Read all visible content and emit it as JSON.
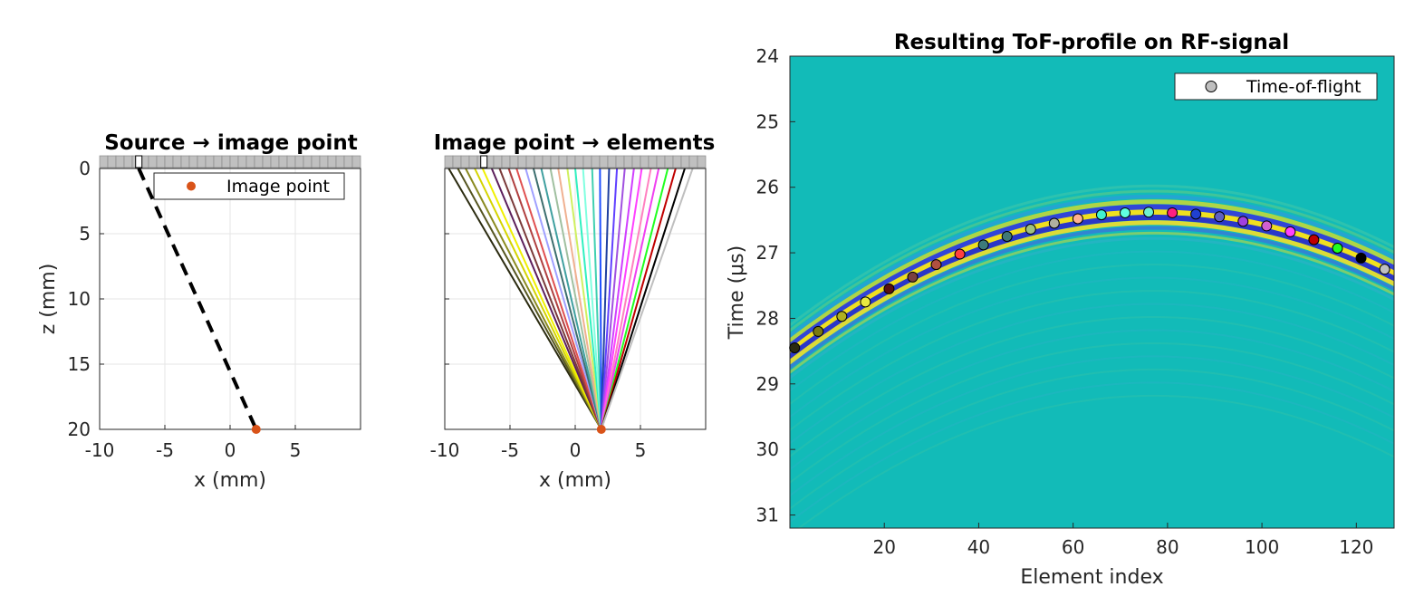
{
  "chart_data": [
    {
      "type": "line",
      "title": "Source → image point",
      "xlabel": "x (mm)",
      "ylabel": "z (mm)",
      "xlim": [
        -10,
        10
      ],
      "ylim": [
        0,
        20
      ],
      "y_reversed": true,
      "grid": true,
      "xticks": [
        -10,
        -5,
        0,
        5
      ],
      "yticks": [
        0,
        5,
        10,
        15,
        20
      ],
      "xtick_labels": [
        "-10",
        "-5",
        "0",
        "5"
      ],
      "ytick_labels": [
        "0",
        "5",
        "10",
        "15",
        "20"
      ],
      "transducer": {
        "x_start": -10,
        "x_end": 10,
        "elements": 32,
        "source_x": -7
      },
      "series": [
        {
          "style": "dashed",
          "color": "#000000",
          "x": [
            -7,
            2
          ],
          "y": [
            0,
            20
          ]
        },
        {
          "name": "Image point",
          "style": "marker",
          "color": "#D95319",
          "x": [
            2
          ],
          "y": [
            20
          ]
        }
      ],
      "legend": {
        "entries": [
          "Image point"
        ],
        "position": "top-right"
      }
    },
    {
      "type": "line",
      "title": "Image point → elements",
      "xlabel": "x (mm)",
      "xlim": [
        -10,
        10
      ],
      "ylim": [
        0,
        20
      ],
      "y_reversed": true,
      "grid": true,
      "xticks": [
        -10,
        -5,
        0,
        5
      ],
      "xtick_labels": [
        "-10",
        "-5",
        "0",
        "5"
      ],
      "yticks": [
        0,
        5,
        10,
        15,
        20
      ],
      "image_point": {
        "x": 2,
        "z": 20,
        "color": "#D95319"
      },
      "transducer": {
        "x_start": -10,
        "x_end": 10,
        "elements": 32,
        "source_x": -7
      },
      "ray_element_x": [
        -9.7,
        -9.0,
        -8.4,
        -7.7,
        -7.1,
        -6.4,
        -5.8,
        -5.1,
        -4.5,
        -3.8,
        -3.2,
        -2.6,
        -1.9,
        -1.3,
        -0.6,
        0.0,
        0.6,
        1.3,
        1.9,
        2.6,
        3.2,
        3.8,
        4.5,
        5.1,
        5.8,
        6.4,
        7.1,
        7.7,
        8.4,
        9.0
      ],
      "ray_colors": [
        "#2b2b10",
        "#555520",
        "#8a8a20",
        "#d4d400",
        "#f0f000",
        "#5c1f5c",
        "#7a3a3a",
        "#b04040",
        "#e05050",
        "#a0a0ff",
        "#3c6e6e",
        "#40a0a0",
        "#a0c0a0",
        "#f0b090",
        "#d0f060",
        "#30f0c0",
        "#80ffe0",
        "#40d0b0",
        "#2050ff",
        "#2040a0",
        "#6040ff",
        "#a050e0",
        "#d040ff",
        "#ff40ff",
        "#ff80c0",
        "#f040f0",
        "#20ff20",
        "#c00000",
        "#000000",
        "#bfbfbf"
      ]
    },
    {
      "type": "heatmap",
      "title": "Resulting ToF-profile on RF-signal",
      "xlabel": "Element index",
      "ylabel": "Time (μs)",
      "xlim": [
        0,
        128
      ],
      "ylim": [
        24,
        31.2
      ],
      "y_reversed": true,
      "background_color": "#12BBB8",
      "xticks": [
        20,
        40,
        60,
        80,
        100,
        120
      ],
      "yticks": [
        24,
        25,
        26,
        27,
        28,
        29,
        30,
        31
      ],
      "xtick_labels": [
        "20",
        "40",
        "60",
        "80",
        "100",
        "120"
      ],
      "ytick_labels": [
        "24",
        "25",
        "26",
        "27",
        "28",
        "29",
        "30",
        "31"
      ],
      "legend": {
        "entries": [
          "Time-of-flight"
        ],
        "position": "top-right"
      },
      "series": [
        {
          "name": "Time-of-flight",
          "type": "scatter",
          "x": [
            1,
            6,
            11,
            16,
            21,
            26,
            31,
            36,
            41,
            46,
            51,
            56,
            61,
            66,
            71,
            76,
            81,
            86,
            91,
            96,
            101,
            106,
            111,
            116,
            121,
            126
          ],
          "y": [
            28.45,
            28.2,
            27.97,
            27.75,
            27.55,
            27.37,
            27.18,
            27.02,
            26.88,
            26.75,
            26.64,
            26.55,
            26.48,
            26.42,
            26.39,
            26.38,
            26.39,
            26.41,
            26.45,
            26.52,
            26.59,
            26.68,
            26.8,
            26.93,
            27.08,
            27.25
          ],
          "colors": [
            "#2b2b10",
            "#7a7a10",
            "#b0b020",
            "#e8e840",
            "#5a1010",
            "#7a4040",
            "#b05040",
            "#ff4040",
            "#3c7a7a",
            "#407878",
            "#a0c080",
            "#b0b0a0",
            "#ffb090",
            "#40f0d0",
            "#60ffe0",
            "#70f0d0",
            "#ff2080",
            "#2040d0",
            "#6060c0",
            "#a040e0",
            "#d060d0",
            "#ff40ff",
            "#c00000",
            "#20ff20",
            "#000000",
            "#bfbfbf"
          ]
        }
      ],
      "wavefront": {
        "center_element": 77,
        "min_time": 26.38,
        "period_us": 0.16
      }
    }
  ]
}
